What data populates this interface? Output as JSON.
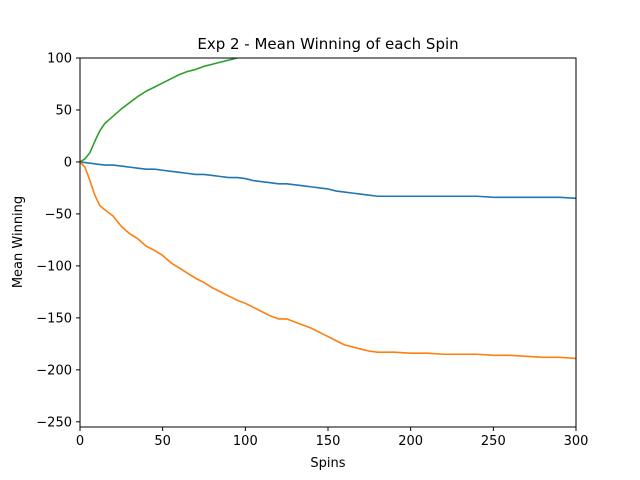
{
  "chart_data": {
    "type": "line",
    "title": "Exp 2 - Mean Winning of each Spin",
    "xlabel": "Spins",
    "ylabel": "Mean Winning",
    "xlim": [
      0,
      300
    ],
    "ylim": [
      -255,
      100
    ],
    "xticks": [
      0,
      50,
      100,
      150,
      200,
      250,
      300
    ],
    "yticks": [
      100,
      50,
      0,
      -50,
      -100,
      -150,
      -200,
      -250
    ],
    "xtick_labels": [
      "0",
      "50",
      "100",
      "150",
      "200",
      "250",
      "300"
    ],
    "ytick_labels": [
      "100",
      "50",
      "0",
      "−50",
      "−100",
      "−150",
      "−200",
      "−250"
    ],
    "grid": false,
    "series": [
      {
        "color": "#1f77b4",
        "x": [
          0,
          5,
          10,
          15,
          20,
          25,
          30,
          35,
          40,
          45,
          50,
          55,
          60,
          65,
          70,
          75,
          80,
          85,
          90,
          95,
          100,
          105,
          110,
          115,
          120,
          125,
          130,
          135,
          140,
          145,
          150,
          155,
          160,
          165,
          170,
          175,
          180,
          190,
          200,
          210,
          220,
          230,
          240,
          250,
          260,
          270,
          280,
          290,
          300
        ],
        "y": [
          0,
          -1,
          -2,
          -3,
          -3,
          -4,
          -5,
          -6,
          -7,
          -7,
          -8,
          -9,
          -10,
          -11,
          -12,
          -12,
          -13,
          -14,
          -15,
          -15,
          -16,
          -18,
          -19,
          -20,
          -21,
          -21,
          -22,
          -23,
          -24,
          -25,
          -26,
          -28,
          -29,
          -30,
          -31,
          -32,
          -33,
          -33,
          -33,
          -33,
          -33,
          -33,
          -33,
          -34,
          -34,
          -34,
          -34,
          -34,
          -35
        ]
      },
      {
        "color": "#ff7f0e",
        "x": [
          0,
          3,
          6,
          9,
          12,
          15,
          20,
          25,
          30,
          35,
          40,
          45,
          50,
          55,
          60,
          65,
          70,
          75,
          80,
          85,
          90,
          95,
          100,
          105,
          110,
          115,
          120,
          125,
          130,
          135,
          140,
          145,
          150,
          155,
          160,
          165,
          170,
          175,
          180,
          190,
          200,
          210,
          220,
          230,
          240,
          250,
          260,
          270,
          280,
          290,
          300
        ],
        "y": [
          0,
          -5,
          -18,
          -32,
          -42,
          -46,
          -52,
          -62,
          -69,
          -74,
          -81,
          -85,
          -90,
          -97,
          -102,
          -107,
          -112,
          -116,
          -121,
          -125,
          -129,
          -133,
          -136,
          -140,
          -144,
          -148,
          -151,
          -151,
          -154,
          -157,
          -160,
          -164,
          -168,
          -172,
          -176,
          -178,
          -180,
          -182,
          -183,
          -183,
          -184,
          -184,
          -185,
          -185,
          -185,
          -186,
          -186,
          -187,
          -188,
          -188,
          -189
        ]
      },
      {
        "color": "#2ca02c",
        "x": [
          0,
          3,
          6,
          9,
          12,
          15,
          20,
          25,
          30,
          35,
          40,
          45,
          50,
          55,
          60,
          65,
          70,
          75,
          80,
          85,
          90,
          95
        ],
        "y": [
          0,
          3,
          9,
          20,
          30,
          37,
          44,
          51,
          57,
          63,
          68,
          72,
          76,
          80,
          84,
          87,
          89,
          92,
          94,
          96,
          98,
          100
        ]
      }
    ]
  }
}
